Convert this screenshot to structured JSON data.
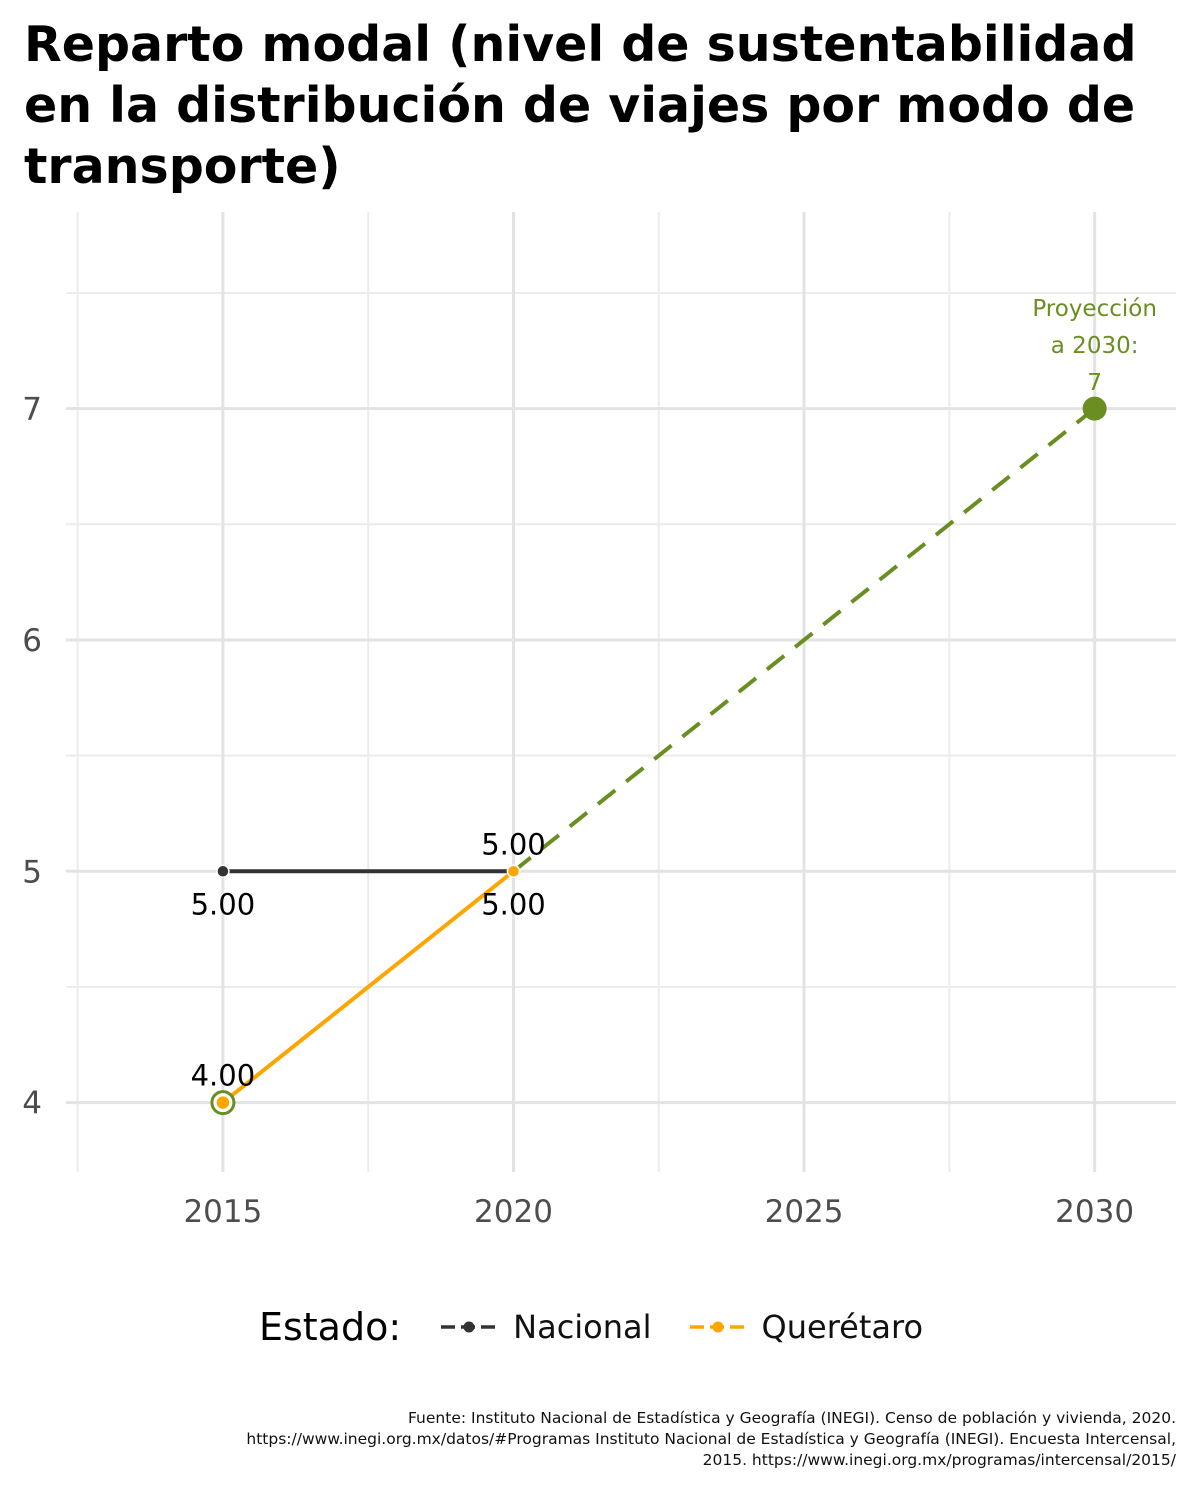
{
  "chart_data": {
    "type": "line",
    "title": "Reparto modal (nivel de sustentabilidad en la distribución de viajes por modo de transporte)",
    "title_lines": [
      "Reparto modal (nivel de sustentabilidad",
      "en la distribución de viajes por modo de",
      "transporte)"
    ],
    "xlim": [
      2012.3,
      2031.4
    ],
    "ylim": [
      3.7,
      7.85
    ],
    "x_ticks": [
      2015,
      2020,
      2025,
      2030
    ],
    "x_tick_labels": [
      "2015",
      "2020",
      "2025",
      "2030"
    ],
    "y_ticks": [
      4,
      5,
      6,
      7
    ],
    "y_tick_labels": [
      "4",
      "5",
      "6",
      "7"
    ],
    "grid": true,
    "series": [
      {
        "name": "Nacional",
        "color": "#333333",
        "x": [
          2015,
          2020
        ],
        "y": [
          5.0,
          5.0
        ],
        "labels": [
          "5.00",
          "5.00"
        ],
        "label_pos": [
          "below",
          "below"
        ]
      },
      {
        "name": "Querétaro",
        "color": "#ffa500",
        "x": [
          2015,
          2020
        ],
        "y": [
          4.0,
          5.0
        ],
        "labels": [
          "4.00",
          "5.00"
        ],
        "label_pos": [
          "above",
          "above"
        ]
      }
    ],
    "projection": {
      "color": "#6b8e23",
      "x": [
        2020,
        2030
      ],
      "y": [
        5.0,
        7.0
      ],
      "dashed": true,
      "label_lines": [
        "Proyección",
        "a 2030:",
        "7"
      ]
    },
    "highlight_point": {
      "x": 2015,
      "y": 4.0,
      "outline_color": "#6b8e23"
    }
  },
  "legend": {
    "title": "Estado:",
    "items": [
      {
        "label": "Nacional",
        "color": "#333333"
      },
      {
        "label": "Querétaro",
        "color": "#ffa500"
      }
    ]
  },
  "caption_lines": [
    "Fuente: Instituto Nacional de Estadística y Geografía (INEGI). Censo de población y vivienda, 2020.",
    "https://www.inegi.org.mx/datos/#Programas Instituto Nacional de Estadística y Geografía (INEGI). Encuesta Intercensal,",
    "2015. https://www.inegi.org.mx/programas/intercensal/2015/"
  ]
}
